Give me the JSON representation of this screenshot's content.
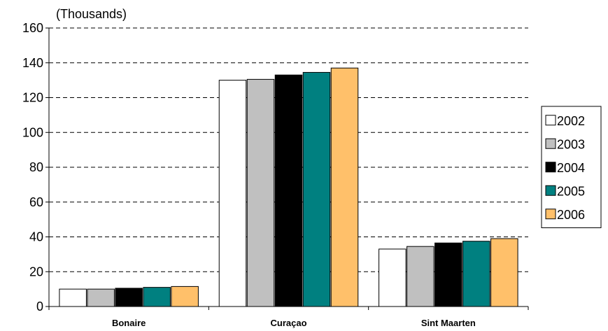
{
  "chart_data": {
    "type": "bar",
    "unit_label": "(Thousands)",
    "categories": [
      "Bonaire",
      "Curaçao",
      "Sint Maarten"
    ],
    "series": [
      {
        "name": "2002",
        "color": "#ffffff",
        "values": [
          10,
          130,
          33
        ]
      },
      {
        "name": "2003",
        "color": "#c0c0c0",
        "values": [
          10,
          130.5,
          34.5
        ]
      },
      {
        "name": "2004",
        "color": "#000000",
        "values": [
          10.5,
          133,
          36.5
        ]
      },
      {
        "name": "2005",
        "color": "#008080",
        "values": [
          11,
          134.5,
          37.5
        ]
      },
      {
        "name": "2006",
        "color": "#ffc06a",
        "values": [
          11.5,
          137,
          39
        ]
      }
    ],
    "ylim": [
      0,
      160
    ],
    "yticks": [
      0,
      20,
      40,
      60,
      80,
      100,
      120,
      140,
      160
    ],
    "grid": "dashed horizontal",
    "legend_position": "right"
  }
}
